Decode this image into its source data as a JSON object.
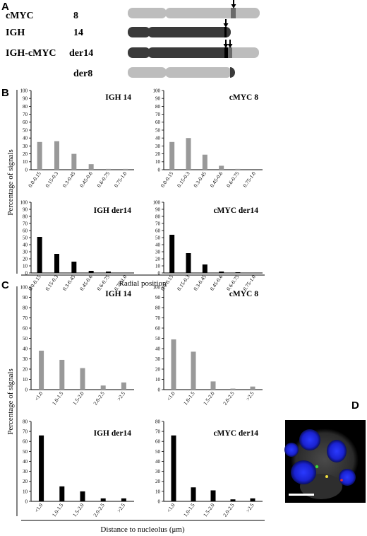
{
  "panel_letters": {
    "a": "A",
    "b": "B",
    "c": "C",
    "d": "D"
  },
  "panel_a": {
    "rows": [
      {
        "name": "cMYC",
        "chrom": "8"
      },
      {
        "name": "IGH",
        "chrom": "14"
      },
      {
        "name": "IGH-cMYC",
        "chrom": "der14"
      },
      {
        "name": "",
        "chrom": "der8"
      }
    ]
  },
  "panel_b": {
    "y_axis_title": "Percentage of signals",
    "x_axis_title": "Radial position"
  },
  "panel_c": {
    "y_axis_title": "Percentage of signals",
    "x_axis_title": "Distance to nucleolus (μm)"
  },
  "colors": {
    "normal_bar": "#999999",
    "der_bar": "#000000",
    "chrom_light": "#bdbdbd",
    "chrom_dark": "#3a3a3a"
  },
  "chart_data": [
    {
      "type": "bar",
      "title": "IGH 14",
      "color": "gray",
      "categories": [
        "0.0-0.15",
        "0.15-0.3",
        "0.3-0.45",
        "0.45-0.6",
        "0.6-0.75",
        "0.75-1.0"
      ],
      "values": [
        35,
        36,
        20,
        7,
        1,
        1
      ],
      "yticks": [
        "0",
        "10",
        "20",
        "30",
        "40",
        "50",
        "60",
        "70",
        "80",
        "90",
        "100"
      ],
      "ylim": [
        0,
        100
      ]
    },
    {
      "type": "bar",
      "title": "cMYC 8",
      "color": "gray",
      "categories": [
        "0.0-0.15",
        "0.15-0.3",
        "0.3-0.45",
        "0.45-0.6",
        "0.6-0.75",
        "0.75-1.0"
      ],
      "values": [
        35,
        40,
        19,
        5,
        1,
        0
      ],
      "yticks": [
        "0",
        "10",
        "20",
        "30",
        "40",
        "50",
        "60",
        "70",
        "80",
        "90",
        "100"
      ],
      "ylim": [
        0,
        100
      ]
    },
    {
      "type": "bar",
      "title": "IGH der14",
      "color": "black",
      "categories": [
        "0.0-0.15",
        "0.15-0.3",
        "0.3-0.45",
        "0.45-0.6",
        "0.6-0.75",
        "0.75-1.0"
      ],
      "values": [
        51,
        27,
        16,
        3,
        2,
        0
      ],
      "yticks": [
        "0",
        "10",
        "20",
        "30",
        "40",
        "50",
        "60",
        "70",
        "80",
        "90",
        "100"
      ],
      "ylim": [
        0,
        100
      ]
    },
    {
      "type": "bar",
      "title": "cMYC der14",
      "color": "black",
      "categories": [
        "0.0-0.15",
        "0.15-0.3",
        "0.3-0.45",
        "0.45-0.6",
        "0.6-0.75",
        "0.75-1.0"
      ],
      "values": [
        54,
        28,
        12,
        2,
        1,
        0
      ],
      "yticks": [
        "0",
        "10",
        "20",
        "30",
        "40",
        "50",
        "60",
        "70",
        "80",
        "90",
        "100"
      ],
      "ylim": [
        0,
        100
      ]
    },
    {
      "type": "bar",
      "title": "IGH 14",
      "color": "gray",
      "categories": [
        "<1.0",
        "1.0-1.5",
        "1.5-2.0",
        "2.0-2.5",
        ">2.5"
      ],
      "values": [
        38,
        29,
        21,
        4,
        7
      ],
      "yticks": [
        "0",
        "10",
        "20",
        "30",
        "40",
        "50",
        "60",
        "70",
        "80",
        "90",
        "100"
      ],
      "ylim": [
        0,
        100
      ]
    },
    {
      "type": "bar",
      "title": "cMYC 8",
      "color": "gray",
      "categories": [
        "<1.0",
        "1.0-1.5",
        "1.5-2.0",
        "2.0-2.5",
        ">2.5"
      ],
      "values": [
        49,
        37,
        8,
        1,
        3
      ],
      "yticks": [
        "0",
        "10",
        "20",
        "30",
        "40",
        "50",
        "60",
        "70",
        "80",
        "90",
        "100"
      ],
      "ylim": [
        0,
        100
      ]
    },
    {
      "type": "bar",
      "title": "IGH der14",
      "color": "black",
      "categories": [
        "<1.0",
        "1.0-1.5",
        "1.5-2.0",
        "2.0-2.5",
        ">2.5"
      ],
      "values": [
        66,
        15,
        10,
        3,
        3
      ],
      "yticks": [
        "0",
        "10",
        "20",
        "30",
        "40",
        "50",
        "60",
        "70",
        "80"
      ],
      "ylim": [
        0,
        80
      ]
    },
    {
      "type": "bar",
      "title": "cMYC der14",
      "color": "black",
      "categories": [
        "<1.0",
        "1.0-1.5",
        "1.5-2.0",
        "2.0-2.5",
        ">2.5"
      ],
      "values": [
        66,
        14,
        11,
        2,
        3
      ],
      "yticks": [
        "0",
        "10",
        "20",
        "30",
        "40",
        "50",
        "60",
        "70",
        "80"
      ],
      "ylim": [
        0,
        80
      ]
    }
  ]
}
